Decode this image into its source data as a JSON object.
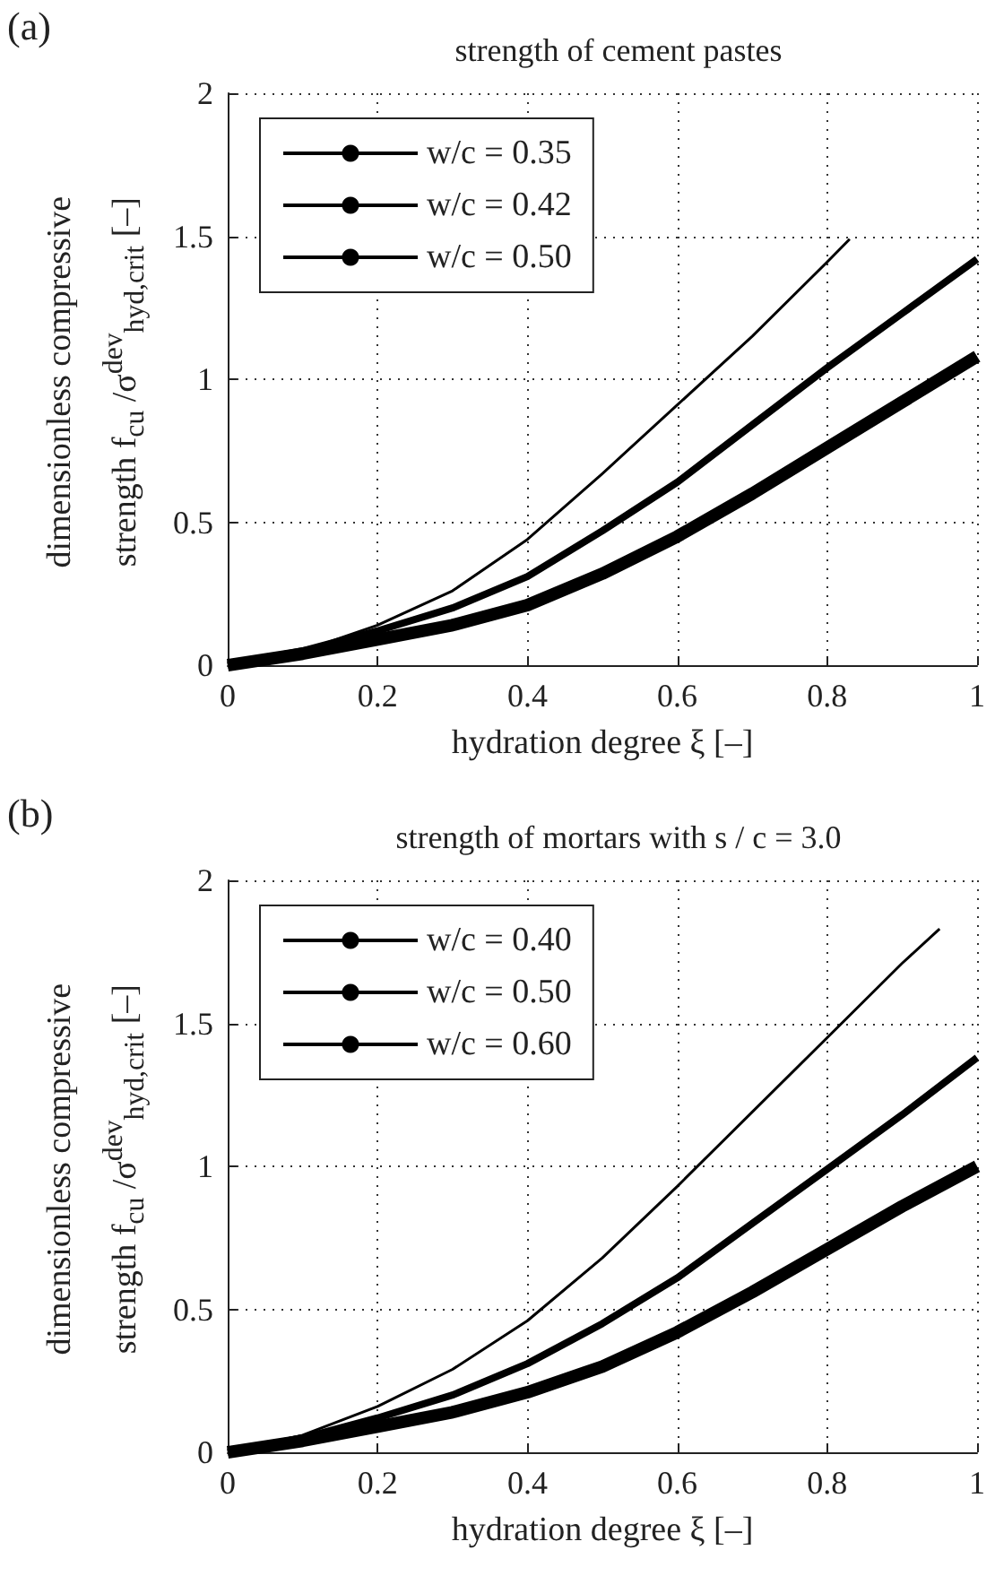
{
  "chart_data": [
    {
      "type": "line",
      "title": "strength of cement pastes",
      "xlabel": "hydration degree ξ [–]",
      "ylabel": "dimensionless compressive strength f$_{cu}$ /σ$^{dev}$$_{hyd,crit}$ [–]",
      "annotations": [
        "(a)"
      ],
      "series": [
        {
          "name": "w/c = 0.35",
          "color": "#000000",
          "x": [
            0,
            0.1,
            0.2,
            0.3,
            0.4,
            0.5,
            0.6,
            0.7,
            0.8,
            0.83
          ],
          "values": [
            0,
            0.05,
            0.14,
            0.26,
            0.44,
            0.67,
            0.91,
            1.15,
            1.41,
            1.49
          ]
        },
        {
          "name": "w/c = 0.42",
          "color": "#000000",
          "x": [
            0,
            0.1,
            0.2,
            0.3,
            0.4,
            0.5,
            0.6,
            0.7,
            0.8,
            0.9,
            1.0
          ],
          "values": [
            0,
            0.05,
            0.12,
            0.2,
            0.31,
            0.47,
            0.64,
            0.84,
            1.04,
            1.23,
            1.42
          ]
        },
        {
          "name": "w/c = 0.50",
          "color": "#000000",
          "x": [
            0,
            0.1,
            0.2,
            0.3,
            0.4,
            0.5,
            0.6,
            0.7,
            0.8,
            0.9,
            1.0
          ],
          "values": [
            0,
            0.04,
            0.09,
            0.14,
            0.21,
            0.32,
            0.45,
            0.6,
            0.76,
            0.92,
            1.08
          ]
        }
      ],
      "xlim": [
        0,
        1
      ],
      "xticks": [
        0,
        0.2,
        0.4,
        0.6,
        0.8,
        1
      ],
      "ylim": [
        0,
        2
      ],
      "yticks": [
        0,
        0.5,
        1,
        1.5,
        2
      ],
      "grid": true,
      "legend": "top left",
      "marker": "none",
      "line_style": "solid"
    },
    {
      "type": "line",
      "title": "strength of mortars with s / c = 3.0",
      "xlabel": "hydration degree ξ [–]",
      "ylabel": "dimensionless compressive strength f$_{cu}$ /σ$^{dev}$$_{hyd,crit}$ [–]",
      "annotations": [
        "(b)"
      ],
      "series": [
        {
          "name": "w/c = 0.40",
          "color": "#000000",
          "x": [
            0,
            0.1,
            0.2,
            0.3,
            0.4,
            0.5,
            0.6,
            0.7,
            0.8,
            0.9,
            0.95
          ],
          "values": [
            0,
            0.06,
            0.16,
            0.29,
            0.46,
            0.68,
            0.93,
            1.19,
            1.45,
            1.71,
            1.83
          ]
        },
        {
          "name": "w/c = 0.50",
          "color": "#000000",
          "x": [
            0,
            0.1,
            0.2,
            0.3,
            0.4,
            0.5,
            0.6,
            0.7,
            0.8,
            0.9,
            1.0
          ],
          "values": [
            0,
            0.05,
            0.12,
            0.2,
            0.31,
            0.45,
            0.61,
            0.8,
            0.99,
            1.18,
            1.38
          ]
        },
        {
          "name": "w/c = 0.60",
          "color": "#000000",
          "x": [
            0,
            0.1,
            0.2,
            0.3,
            0.4,
            0.5,
            0.6,
            0.7,
            0.8,
            0.9,
            1.0
          ],
          "values": [
            0,
            0.04,
            0.09,
            0.14,
            0.21,
            0.3,
            0.42,
            0.56,
            0.71,
            0.86,
            1.0
          ]
        }
      ],
      "xlim": [
        0,
        1
      ],
      "xticks": [
        0,
        0.2,
        0.4,
        0.6,
        0.8,
        1
      ],
      "ylim": [
        0,
        2
      ],
      "yticks": [
        0,
        0.5,
        1,
        1.5,
        2
      ],
      "grid": true,
      "legend": "top left",
      "marker": "none",
      "line_style": "solid"
    }
  ]
}
